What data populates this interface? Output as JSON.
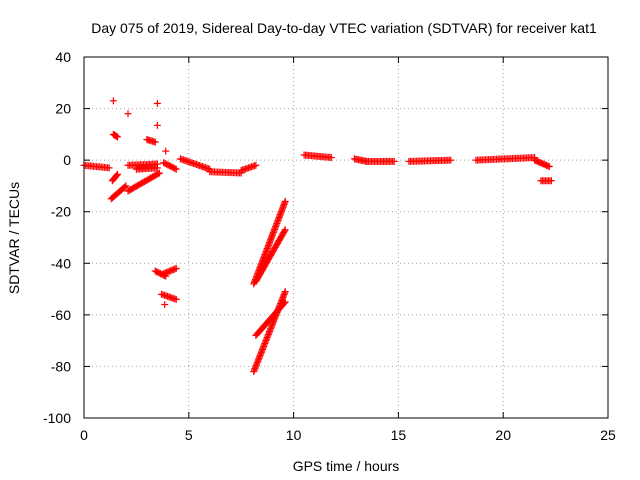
{
  "chart_data": {
    "type": "scatter",
    "title": "Day 075 of 2019, Sidereal Day-to-day VTEC variation (SDTVAR) for receiver kat1",
    "xlabel": "GPS time / hours",
    "ylabel": "SDTVAR / TECUs",
    "xlim": [
      0,
      25
    ],
    "ylim": [
      -100,
      40
    ],
    "xticks": [
      0,
      5,
      10,
      15,
      20,
      25
    ],
    "yticks": [
      -100,
      -80,
      -60,
      -40,
      -20,
      0,
      20,
      40
    ],
    "grid": true,
    "marker": "+",
    "color": "#ff0000",
    "segments": [
      {
        "x": [
          0.0,
          1.2
        ],
        "y": [
          -2.0,
          -3.0
        ]
      },
      {
        "x": [
          1.3,
          2.0
        ],
        "y": [
          -15.0,
          -10.0
        ]
      },
      {
        "x": [
          1.35,
          1.6
        ],
        "y": [
          -8.0,
          -5.5
        ]
      },
      {
        "x": [
          1.4,
          1.6
        ],
        "y": [
          10.0,
          9.0
        ]
      },
      {
        "x": [
          2.1,
          3.6
        ],
        "y": [
          -12.0,
          -5.0
        ]
      },
      {
        "x": [
          2.1,
          3.5
        ],
        "y": [
          -2.0,
          -1.5
        ]
      },
      {
        "x": [
          2.5,
          3.5
        ],
        "y": [
          -3.5,
          -3.0
        ]
      },
      {
        "x": [
          3.0,
          3.4
        ],
        "y": [
          8.0,
          7.0
        ]
      },
      {
        "x": [
          3.4,
          3.9
        ],
        "y": [
          -43.0,
          -45.0
        ]
      },
      {
        "x": [
          3.8,
          4.4
        ],
        "y": [
          -44.0,
          -42.0
        ]
      },
      {
        "x": [
          3.7,
          4.4
        ],
        "y": [
          -52.0,
          -54.0
        ]
      },
      {
        "x": [
          3.8,
          4.4
        ],
        "y": [
          -1.0,
          -3.5
        ]
      },
      {
        "x": [
          4.6,
          6.0
        ],
        "y": [
          0.5,
          -3.5
        ]
      },
      {
        "x": [
          6.0,
          7.5
        ],
        "y": [
          -4.5,
          -5.0
        ]
      },
      {
        "x": [
          7.5,
          8.2
        ],
        "y": [
          -4.0,
          -2.0
        ]
      },
      {
        "x": [
          8.1,
          9.6
        ],
        "y": [
          -48.0,
          -16.0
        ]
      },
      {
        "x": [
          8.2,
          9.6
        ],
        "y": [
          -47.0,
          -27.0
        ]
      },
      {
        "x": [
          8.1,
          9.6
        ],
        "y": [
          -82.0,
          -51.0
        ]
      },
      {
        "x": [
          8.2,
          9.6
        ],
        "y": [
          -68.0,
          -55.0
        ]
      },
      {
        "x": [
          10.5,
          11.8
        ],
        "y": [
          2.0,
          1.0
        ]
      },
      {
        "x": [
          12.9,
          13.5
        ],
        "y": [
          0.5,
          -0.5
        ]
      },
      {
        "x": [
          13.5,
          14.8
        ],
        "y": [
          -0.5,
          -0.5
        ]
      },
      {
        "x": [
          15.5,
          17.5
        ],
        "y": [
          -0.5,
          0.0
        ]
      },
      {
        "x": [
          18.7,
          21.5
        ],
        "y": [
          0.0,
          1.0
        ]
      },
      {
        "x": [
          21.5,
          22.2
        ],
        "y": [
          0.0,
          -2.5
        ]
      },
      {
        "x": [
          21.8,
          22.3
        ],
        "y": [
          -8.0,
          -8.0
        ]
      }
    ],
    "points": [
      {
        "x": 1.4,
        "y": 23.0
      },
      {
        "x": 2.1,
        "y": 18.0
      },
      {
        "x": 3.5,
        "y": 22.0
      },
      {
        "x": 3.5,
        "y": 13.5
      },
      {
        "x": 3.9,
        "y": 3.5
      },
      {
        "x": 3.85,
        "y": -56.0
      }
    ]
  }
}
